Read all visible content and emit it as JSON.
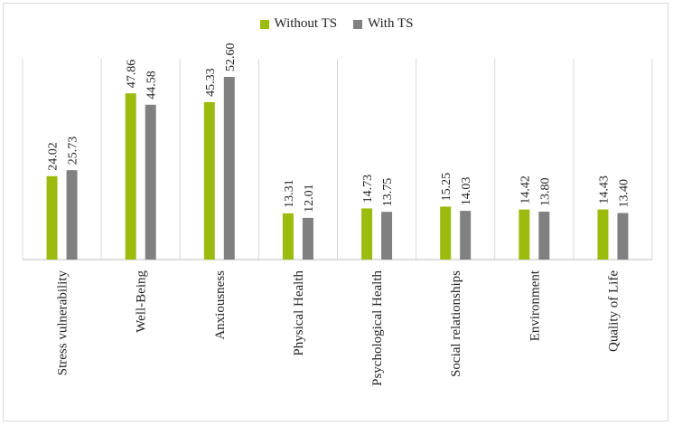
{
  "chart_data": {
    "type": "bar",
    "title": "",
    "xlabel": "",
    "ylabel": "",
    "ylim": [
      0,
      60
    ],
    "grid": "vertical-category-separators",
    "legend_position": "top-center",
    "categories": [
      "Stress vulnerability",
      "Well-Being",
      "Anxiousness",
      "Physical Health",
      "Psychological Health",
      "Social relationships",
      "Environment",
      "Quality of Life"
    ],
    "series": [
      {
        "name": "Without TS",
        "color": "#9bbb0e",
        "values": [
          24.02,
          47.86,
          45.33,
          13.31,
          14.73,
          15.25,
          14.42,
          14.43
        ],
        "labels": [
          "24.02",
          "47.86",
          "45.33",
          "13.31",
          "14.73",
          "15.25",
          "14.42",
          "14.43"
        ]
      },
      {
        "name": "With TS",
        "color": "#808080",
        "values": [
          25.73,
          44.58,
          52.6,
          12.01,
          13.75,
          14.03,
          13.8,
          13.4
        ],
        "labels": [
          "25.73",
          "44.58",
          "52.60",
          "12.01",
          "13.75",
          "14.03",
          "13.80",
          "13.40"
        ]
      }
    ]
  }
}
